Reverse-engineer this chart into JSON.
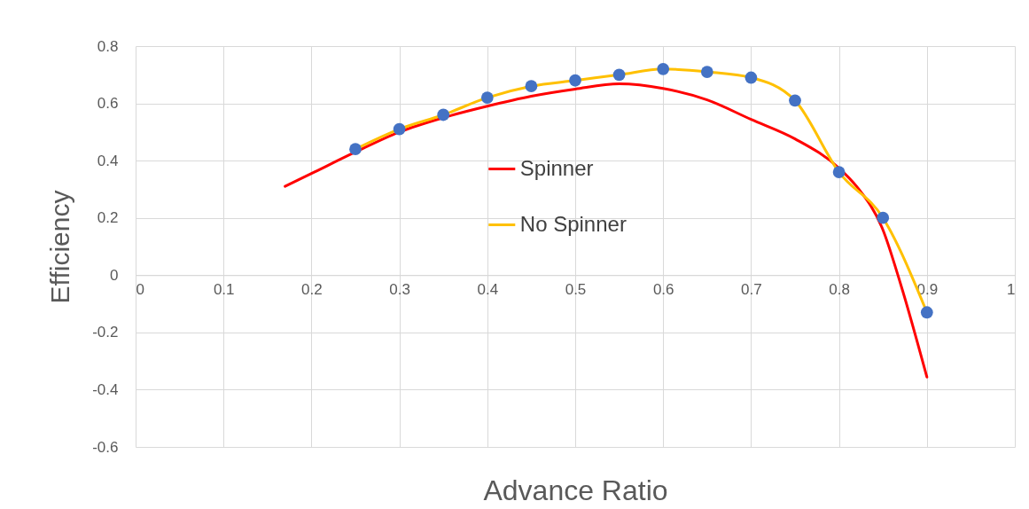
{
  "chart_data": {
    "type": "line",
    "xlabel": "Advance Ratio",
    "ylabel": "Efficiency",
    "xlim": [
      0,
      1
    ],
    "ylim": [
      -0.6,
      0.8
    ],
    "xticks": [
      0,
      0.1,
      0.2,
      0.3,
      0.4,
      0.5,
      0.6,
      0.7,
      0.8,
      0.9,
      1
    ],
    "yticks": [
      -0.6,
      -0.4,
      -0.2,
      0,
      0.2,
      0.4,
      0.6,
      0.8
    ],
    "grid": true,
    "legend": "center",
    "series": [
      {
        "name": "Spinner",
        "color": "#ff0000",
        "marker": "none",
        "x": [
          0.17,
          0.2,
          0.25,
          0.3,
          0.35,
          0.4,
          0.45,
          0.5,
          0.55,
          0.6,
          0.65,
          0.7,
          0.75,
          0.8,
          0.82,
          0.85,
          0.87,
          0.9
        ],
        "values": [
          0.31,
          0.355,
          0.43,
          0.5,
          0.55,
          0.59,
          0.625,
          0.65,
          0.668,
          0.652,
          0.612,
          0.544,
          0.476,
          0.374,
          0.31,
          0.158,
          -0.03,
          -0.356
        ]
      },
      {
        "name": "No Spinner",
        "color": "#ffc000",
        "marker": "circle",
        "colors": [
          "#4472c4",
          "#4472c4",
          "#4472c4",
          "#4472c4",
          "#4472c4",
          "#4472c4",
          "#4472c4",
          "#4472c4",
          "#4472c4",
          "#4472c4",
          "#4472c4",
          "#4472c4",
          "#4472c4",
          "#4472c4"
        ],
        "x": [
          0.25,
          0.3,
          0.35,
          0.4,
          0.45,
          0.5,
          0.55,
          0.6,
          0.65,
          0.7,
          0.75,
          0.8,
          0.85,
          0.9
        ],
        "values": [
          0.44,
          0.51,
          0.56,
          0.62,
          0.66,
          0.68,
          0.7,
          0.72,
          0.71,
          0.69,
          0.61,
          0.36,
          0.2,
          -0.13
        ]
      }
    ]
  }
}
